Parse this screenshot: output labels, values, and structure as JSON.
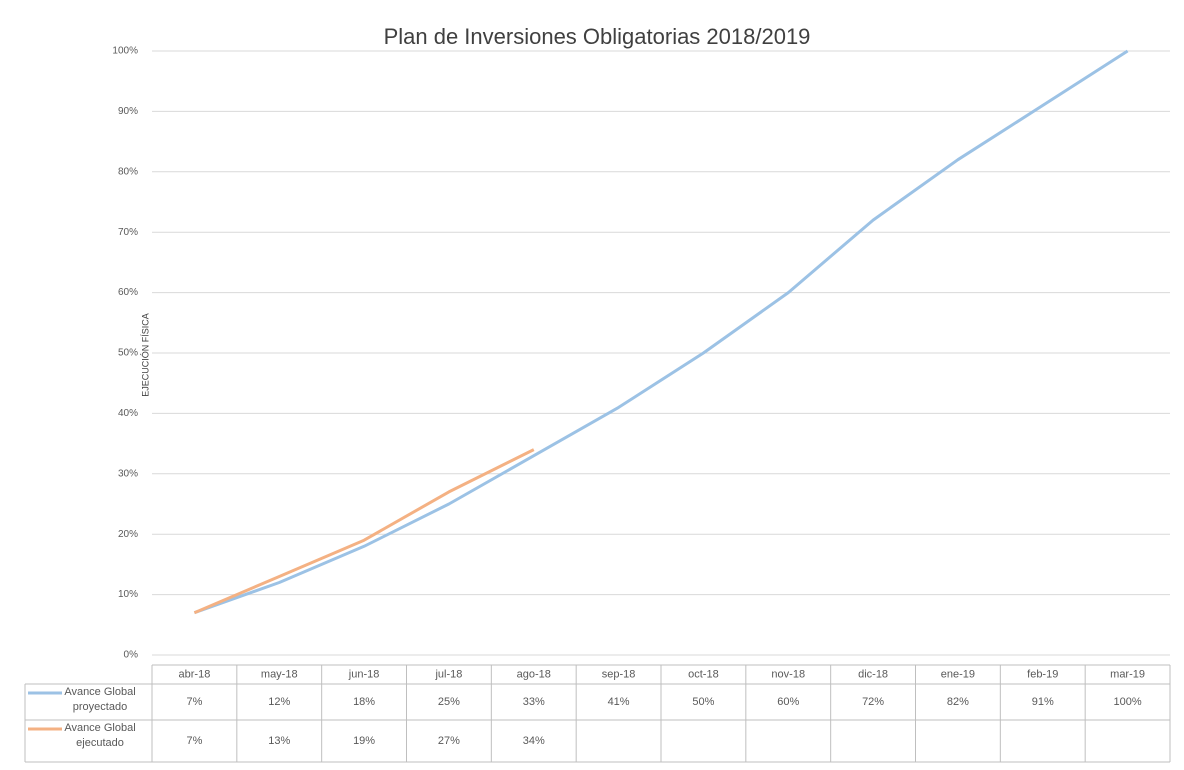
{
  "chart_data": {
    "type": "line",
    "title": "Plan de Inversiones Obligatorias  2018/2019",
    "y_label": "EJECUCIÓN FÍSICA",
    "categories": [
      "abr-18",
      "may-18",
      "jun-18",
      "jul-18",
      "ago-18",
      "sep-18",
      "oct-18",
      "nov-18",
      "dic-18",
      "ene-19",
      "feb-19",
      "mar-19"
    ],
    "series": [
      {
        "name": "Avance Global proyectado",
        "color": "#9cc2e5",
        "values": [
          7,
          12,
          18,
          25,
          33,
          41,
          50,
          60,
          72,
          82,
          91,
          100
        ],
        "value_labels": [
          "7%",
          "12%",
          "18%",
          "25%",
          "33%",
          "41%",
          "50%",
          "60%",
          "72%",
          "82%",
          "91%",
          "100%"
        ]
      },
      {
        "name": "Avance Global ejecutado",
        "color": "#f4b183",
        "values": [
          7,
          13,
          19,
          27,
          34,
          null,
          null,
          null,
          null,
          null,
          null,
          null
        ],
        "value_labels": [
          "7%",
          "13%",
          "19%",
          "27%",
          "34%",
          null,
          null,
          null,
          null,
          null,
          null,
          null
        ]
      }
    ],
    "ylim": [
      0,
      100
    ],
    "yticks": [
      {
        "value": 0,
        "label": "0%"
      },
      {
        "value": 10,
        "label": "10%"
      },
      {
        "value": 20,
        "label": "20%"
      },
      {
        "value": 30,
        "label": "30%"
      },
      {
        "value": 40,
        "label": "40%"
      },
      {
        "value": 50,
        "label": "50%"
      },
      {
        "value": 60,
        "label": "60%"
      },
      {
        "value": 70,
        "label": "70%"
      },
      {
        "value": 80,
        "label": "80%"
      },
      {
        "value": 90,
        "label": "90%"
      },
      {
        "value": 100,
        "label": "100%"
      }
    ],
    "grid": true,
    "data_table": true
  }
}
